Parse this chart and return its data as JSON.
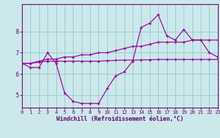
{
  "x": [
    0,
    1,
    2,
    3,
    4,
    5,
    6,
    7,
    8,
    9,
    10,
    11,
    12,
    13,
    14,
    15,
    16,
    17,
    18,
    19,
    20,
    21,
    22,
    23
  ],
  "line1": [
    6.5,
    6.3,
    6.3,
    7.0,
    6.5,
    5.1,
    4.7,
    4.6,
    4.6,
    4.6,
    5.3,
    5.9,
    6.1,
    6.6,
    8.2,
    8.4,
    8.8,
    7.8,
    7.6,
    8.1,
    7.6,
    7.6,
    7.0,
    6.8
  ],
  "line2": [
    6.5,
    6.5,
    6.6,
    6.7,
    6.7,
    6.8,
    6.8,
    6.9,
    6.9,
    7.0,
    7.0,
    7.1,
    7.2,
    7.3,
    7.3,
    7.4,
    7.5,
    7.5,
    7.5,
    7.5,
    7.6,
    7.6,
    7.6,
    7.6
  ],
  "line3": [
    6.5,
    6.5,
    6.55,
    6.6,
    6.6,
    6.6,
    6.6,
    6.6,
    6.6,
    6.6,
    6.62,
    6.64,
    6.65,
    6.65,
    6.66,
    6.67,
    6.68,
    6.68,
    6.68,
    6.68,
    6.68,
    6.68,
    6.68,
    6.68
  ],
  "line_color": "#990099",
  "bg_color": "#cce8eb",
  "grid_color": "#99ccd0",
  "xlabel": "Windchill (Refroidissement éolien,°C)",
  "xlabel_color": "#660066",
  "tick_color": "#660066",
  "axis_color": "#660066",
  "ylim": [
    4.4,
    9.3
  ],
  "xlim": [
    0,
    23
  ],
  "yticks": [
    5,
    6,
    7,
    8
  ],
  "xticks": [
    0,
    1,
    2,
    3,
    4,
    5,
    6,
    7,
    8,
    9,
    10,
    11,
    12,
    13,
    14,
    15,
    16,
    17,
    18,
    19,
    20,
    21,
    22,
    23
  ]
}
